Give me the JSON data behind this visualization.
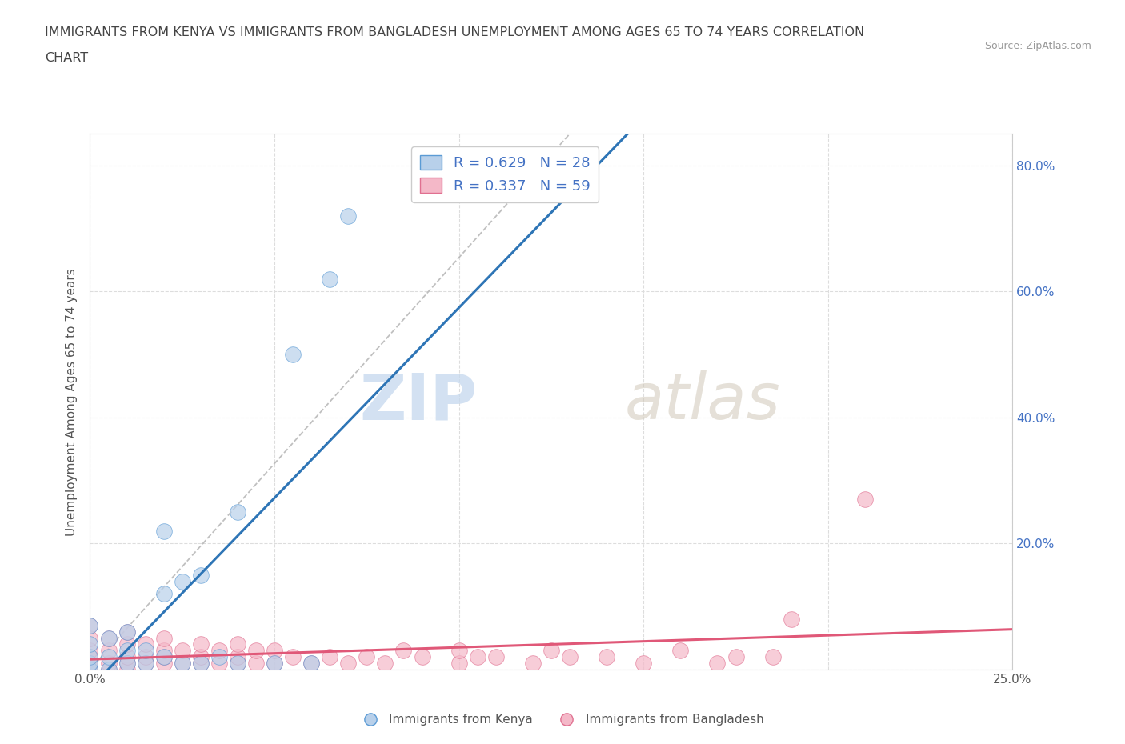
{
  "title_line1": "IMMIGRANTS FROM KENYA VS IMMIGRANTS FROM BANGLADESH UNEMPLOYMENT AMONG AGES 65 TO 74 YEARS CORRELATION",
  "title_line2": "CHART",
  "source": "Source: ZipAtlas.com",
  "ylabel": "Unemployment Among Ages 65 to 74 years",
  "xlim": [
    0.0,
    0.25
  ],
  "ylim": [
    0.0,
    0.85
  ],
  "x_ticks": [
    0.0,
    0.05,
    0.1,
    0.15,
    0.2,
    0.25
  ],
  "y_ticks": [
    0.0,
    0.2,
    0.4,
    0.6,
    0.8
  ],
  "kenya_R": 0.629,
  "kenya_N": 28,
  "bangladesh_R": 0.337,
  "bangladesh_N": 59,
  "kenya_color": "#b8d0ea",
  "kenya_edge_color": "#5b9bd5",
  "kenya_line_color": "#2e75b6",
  "bangladesh_color": "#f4b8c8",
  "bangladesh_edge_color": "#e07090",
  "bangladesh_line_color": "#e05878",
  "kenya_scatter_x": [
    0.0,
    0.0,
    0.0,
    0.0,
    0.0,
    0.005,
    0.005,
    0.005,
    0.01,
    0.01,
    0.01,
    0.015,
    0.015,
    0.02,
    0.02,
    0.02,
    0.025,
    0.025,
    0.03,
    0.03,
    0.035,
    0.04,
    0.04,
    0.05,
    0.055,
    0.06,
    0.065,
    0.07
  ],
  "kenya_scatter_y": [
    0.0,
    0.01,
    0.02,
    0.04,
    0.07,
    0.0,
    0.02,
    0.05,
    0.01,
    0.03,
    0.06,
    0.01,
    0.03,
    0.02,
    0.12,
    0.22,
    0.01,
    0.14,
    0.01,
    0.15,
    0.02,
    0.01,
    0.25,
    0.01,
    0.5,
    0.01,
    0.62,
    0.72
  ],
  "bangladesh_scatter_x": [
    0.0,
    0.0,
    0.0,
    0.0,
    0.0,
    0.0,
    0.005,
    0.005,
    0.005,
    0.005,
    0.01,
    0.01,
    0.01,
    0.01,
    0.01,
    0.015,
    0.015,
    0.015,
    0.02,
    0.02,
    0.02,
    0.02,
    0.025,
    0.025,
    0.03,
    0.03,
    0.03,
    0.035,
    0.035,
    0.04,
    0.04,
    0.04,
    0.045,
    0.045,
    0.05,
    0.05,
    0.055,
    0.06,
    0.065,
    0.07,
    0.075,
    0.08,
    0.085,
    0.09,
    0.1,
    0.1,
    0.105,
    0.11,
    0.12,
    0.125,
    0.13,
    0.14,
    0.15,
    0.16,
    0.17,
    0.175,
    0.185,
    0.19,
    0.21
  ],
  "bangladesh_scatter_y": [
    0.0,
    0.01,
    0.02,
    0.03,
    0.05,
    0.07,
    0.0,
    0.01,
    0.03,
    0.05,
    0.0,
    0.01,
    0.02,
    0.04,
    0.06,
    0.01,
    0.02,
    0.04,
    0.01,
    0.02,
    0.03,
    0.05,
    0.01,
    0.03,
    0.01,
    0.02,
    0.04,
    0.01,
    0.03,
    0.01,
    0.02,
    0.04,
    0.01,
    0.03,
    0.01,
    0.03,
    0.02,
    0.01,
    0.02,
    0.01,
    0.02,
    0.01,
    0.03,
    0.02,
    0.01,
    0.03,
    0.02,
    0.02,
    0.01,
    0.03,
    0.02,
    0.02,
    0.01,
    0.03,
    0.01,
    0.02,
    0.02,
    0.08,
    0.27
  ],
  "watermark_zip": "ZIP",
  "watermark_atlas": "atlas",
  "bg_color": "#ffffff",
  "grid_color": "#dddddd",
  "right_tick_color": "#4472c4",
  "title_color": "#444444",
  "axis_label_color": "#555555",
  "tick_label_color": "#555555"
}
